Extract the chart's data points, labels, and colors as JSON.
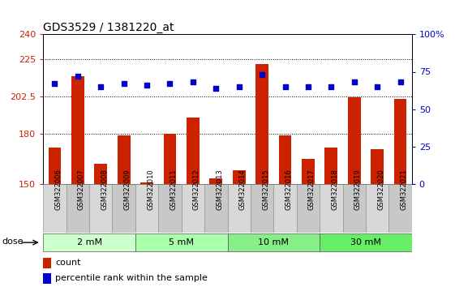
{
  "title": "GDS3529 / 1381220_at",
  "samples": [
    "GSM322006",
    "GSM322007",
    "GSM322008",
    "GSM322009",
    "GSM322010",
    "GSM322011",
    "GSM322012",
    "GSM322013",
    "GSM322014",
    "GSM322015",
    "GSM322016",
    "GSM322017",
    "GSM322018",
    "GSM322019",
    "GSM322020",
    "GSM322021"
  ],
  "bar_values": [
    172,
    215,
    162,
    179,
    151,
    180,
    190,
    153,
    158,
    222,
    179,
    165,
    172,
    202,
    171,
    201
  ],
  "percentile_values": [
    67,
    72,
    65,
    67,
    66,
    67,
    68,
    64,
    65,
    73,
    65,
    65,
    65,
    68,
    65,
    68
  ],
  "bar_color": "#cc2200",
  "dot_color": "#0000cc",
  "ylim_left": [
    150,
    240
  ],
  "ylim_right": [
    0,
    100
  ],
  "yticks_left": [
    150,
    180,
    202.5,
    225,
    240
  ],
  "yticks_right": [
    0,
    25,
    50,
    75,
    100
  ],
  "ytick_labels_left": [
    "150",
    "180",
    "202.5",
    "225",
    "240"
  ],
  "ytick_labels_right": [
    "0",
    "25",
    "50",
    "75",
    "100%"
  ],
  "groups": [
    {
      "label": "2 mM",
      "start": 0,
      "end": 4
    },
    {
      "label": "5 mM",
      "start": 4,
      "end": 8
    },
    {
      "label": "10 mM",
      "start": 8,
      "end": 12
    },
    {
      "label": "30 mM",
      "start": 12,
      "end": 16
    }
  ],
  "group_colors": [
    "#ccffcc",
    "#aaffaa",
    "#88ee88",
    "#66ee66"
  ],
  "dose_label": "dose",
  "legend_count_label": "count",
  "legend_percentile_label": "percentile rank within the sample",
  "bar_width": 0.55,
  "background_color": "#ffffff",
  "bar_color_left": "#cc2200",
  "tick_color_right": "#0000cc",
  "title_fontsize": 10,
  "axis_fontsize": 8,
  "sample_fontsize": 6,
  "group_fontsize": 8,
  "legend_fontsize": 8
}
